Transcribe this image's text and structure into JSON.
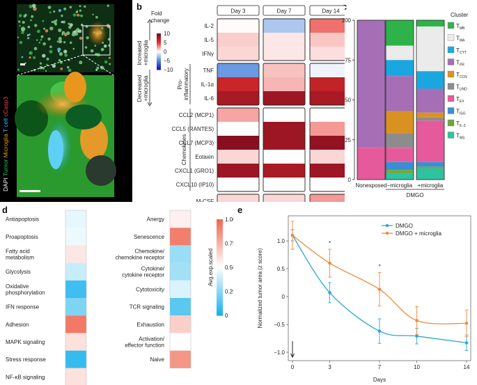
{
  "panel_labels": {
    "a": "a",
    "b": "b",
    "c": "c",
    "d": "d",
    "e": "e"
  },
  "panel_a": {
    "channels": [
      {
        "name": "DAPI",
        "color": "#ffffff"
      },
      {
        "name": "Tumor",
        "color": "#22c55e"
      },
      {
        "name": "Microglia",
        "color": "#f59e0b"
      },
      {
        "name": "T cell",
        "color": "#38bdf8"
      },
      {
        "name": "cCasp3",
        "color": "#ef4444"
      }
    ]
  },
  "panel_b": {
    "scale_title": "Fold\nchange",
    "scale_ticks": [
      "10",
      "5",
      "0",
      "−5",
      "−10"
    ],
    "scale_up_label": "Increased\n+microglia",
    "scale_down_label": "Decreased\n+microglia",
    "columns": [
      "Day 3",
      "Day 7",
      "Day 14"
    ],
    "groups": [
      {
        "name": "",
        "rows": [
          {
            "label": "IL-2",
            "values": [
              0.1,
              -2.5,
              3.5
            ]
          },
          {
            "label": "IL-5",
            "values": [
              1.2,
              0.6,
              1.4
            ]
          },
          {
            "label": "IFNγ",
            "values": [
              1.0,
              0.6,
              0.8
            ]
          }
        ]
      },
      {
        "name": "Pro-\ninflammatory",
        "rows": [
          {
            "label": "TNF",
            "values": [
              -4.5,
              1.5,
              -0.5
            ]
          },
          {
            "label": "IL-1α",
            "values": [
              6.5,
              1.8,
              6.8
            ]
          },
          {
            "label": "IL-6",
            "values": [
              8.0,
              8.5,
              8.0
            ]
          }
        ]
      },
      {
        "name": "Chemokines",
        "rows": [
          {
            "label": "CCL2 (MCP1)",
            "values": [
              2.2,
              0.0,
              0.0
            ]
          },
          {
            "label": "CCL5 (RANTES)",
            "values": [
              0.0,
              8.5,
              2.5
            ]
          },
          {
            "label": "CCL7 (MCP3)",
            "values": [
              9.5,
              8.5,
              9.0
            ]
          },
          {
            "label": "Eotaxin",
            "values": [
              1.0,
              0.0,
              1.0
            ]
          },
          {
            "label": "CXCL1 (GRO1)",
            "values": [
              8.5,
              8.0,
              8.5
            ]
          },
          {
            "label": "CXCL10 (IP10)",
            "values": [
              0.0,
              0.0,
              0.0
            ]
          }
        ]
      },
      {
        "name": "",
        "rows": [
          {
            "label": "M-CSF",
            "values": [
              1.0,
              1.0,
              2.5
            ]
          }
        ]
      }
    ]
  },
  "chart_data": [
    {
      "type": "bar",
      "subtype": "stacked-percent",
      "ylabel": "Percentage of cells (%)",
      "ylim": [
        0,
        100
      ],
      "yticks": [
        "0",
        "25",
        "50",
        "75",
        "100"
      ],
      "categories": [
        "Nonexposed",
        "–microglia",
        "+microglia"
      ],
      "group_label": "DMGO",
      "legend_title": "Cluster",
      "series": [
        {
          "name": "T",
          "sub": "MB",
          "color": "#2db34a",
          "values": [
            0,
            16,
            4
          ]
        },
        {
          "name": "T",
          "sub": "MA",
          "color": "#ebebeb",
          "values": [
            0,
            9,
            28
          ]
        },
        {
          "name": "T",
          "sub": "CYT",
          "color": "#1aa7e0",
          "values": [
            0,
            10,
            11
          ]
        },
        {
          "name": "T",
          "sub": "PR",
          "color": "#a66fb5",
          "values": [
            80,
            22,
            15
          ]
        },
        {
          "name": "T",
          "sub": "CCN",
          "color": "#d99222",
          "values": [
            0,
            14,
            3
          ]
        },
        {
          "name": "T",
          "sub": "UND",
          "color": "#8c8c8c",
          "values": [
            0,
            9,
            2
          ]
        },
        {
          "name": "T",
          "sub": "EX",
          "color": "#e55a9b",
          "values": [
            20,
            9,
            26
          ]
        },
        {
          "name": "T",
          "sub": "ISG",
          "color": "#3a8fd4",
          "values": [
            0,
            5,
            3
          ]
        },
        {
          "name": "T",
          "sub": "IL-2",
          "color": "#6aaa3a",
          "values": [
            0,
            2,
            1
          ]
        },
        {
          "name": "T",
          "sub": "MS",
          "color": "#2ec2a0",
          "values": [
            0,
            4,
            7
          ]
        }
      ]
    },
    {
      "type": "heatmap",
      "colorbar_label": "Avg.exp.scaled",
      "colorbar_ticks": [
        "1.00",
        "0.75",
        "0.50",
        "0.25",
        "0"
      ],
      "left_column": [
        {
          "label": "Antiapoptosis",
          "value": 0.45
        },
        {
          "label": "Proapoptosis",
          "value": 0.46
        },
        {
          "label": "Fatty acid\nmetabolism",
          "value": 0.58
        },
        {
          "label": "Glycolysis",
          "value": 0.38
        },
        {
          "label": "Oxidative\nphosphorylation",
          "value": 0.08
        },
        {
          "label": "IFN response",
          "value": 0.22
        },
        {
          "label": "Adhesion",
          "value": 0.95
        },
        {
          "label": "MAPK signaling",
          "value": 0.6
        },
        {
          "label": "Stress response",
          "value": 0.06
        },
        {
          "label": "NF-κB signaling",
          "value": 0.6
        }
      ],
      "right_column": [
        {
          "label": "Anergy",
          "value": 0.55
        },
        {
          "label": "Senescence",
          "value": 0.93
        },
        {
          "label": "Chemokine/\nchemokine receptor",
          "value": 0.28
        },
        {
          "label": "Cytokine/\ncytokine receptor",
          "value": 0.3
        },
        {
          "label": "Cytotoxicity",
          "value": 0.42
        },
        {
          "label": "TCR signaling",
          "value": 0.14
        },
        {
          "label": "Exhaustion",
          "value": 0.66
        },
        {
          "label": "Activation/\neffector function",
          "value": 0.5
        },
        {
          "label": "Naive",
          "value": 0.85
        }
      ]
    },
    {
      "type": "line",
      "xlabel": "Days",
      "ylabel": "Normalized tumor area (z score)",
      "x": [
        0,
        3,
        7,
        10,
        14
      ],
      "xticks": [
        "0",
        "3",
        "7",
        "10",
        "14"
      ],
      "yticks": [
        "1.0",
        "0.5",
        "0",
        "−0.5",
        "−1.0"
      ],
      "ylim": [
        -1.15,
        1.45
      ],
      "annotations": [
        {
          "text": "*",
          "x": 3
        },
        {
          "text": "*",
          "x": 7
        }
      ],
      "series": [
        {
          "name": "DMGO",
          "color": "#2aa7dc",
          "values": [
            1.1,
            0.07,
            -0.62,
            -0.71,
            -0.83
          ],
          "errors": [
            0.1,
            0.18,
            0.22,
            0.14,
            0.14
          ]
        },
        {
          "name": "DMGO + microglia",
          "color": "#f08a3c",
          "values": [
            1.1,
            0.6,
            0.13,
            -0.43,
            -0.48
          ],
          "errors": [
            0.25,
            0.25,
            0.3,
            0.25,
            0.24
          ]
        }
      ]
    }
  ]
}
